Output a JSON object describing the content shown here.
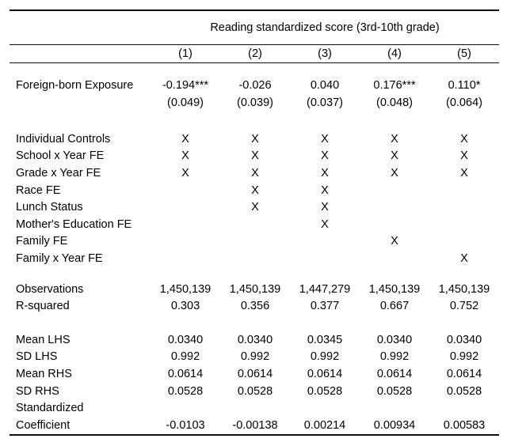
{
  "table": {
    "span_header": "Reading standardized score (3rd-10th grade)",
    "columns": [
      "(1)",
      "(2)",
      "(3)",
      "(4)",
      "(5)"
    ],
    "coefficient": {
      "label": "Foreign-born Exposure",
      "estimates": [
        "-0.194***",
        "-0.026",
        "0.040",
        "0.176***",
        "0.110*"
      ],
      "std_errors": [
        "(0.049)",
        "(0.039)",
        "(0.037)",
        "(0.048)",
        "(0.064)"
      ]
    },
    "controls": [
      {
        "label": "Individual Controls",
        "values": [
          "X",
          "X",
          "X",
          "X",
          "X"
        ]
      },
      {
        "label": "School x Year FE",
        "values": [
          "X",
          "X",
          "X",
          "X",
          "X"
        ]
      },
      {
        "label": "Grade x Year FE",
        "values": [
          "X",
          "X",
          "X",
          "X",
          "X"
        ]
      },
      {
        "label": "Race FE",
        "values": [
          "",
          "X",
          "X",
          "",
          ""
        ]
      },
      {
        "label": "Lunch Status",
        "values": [
          "",
          "X",
          "X",
          "",
          ""
        ]
      },
      {
        "label": "Mother's Education FE",
        "values": [
          "",
          "",
          "X",
          "",
          ""
        ]
      },
      {
        "label": "Family FE",
        "values": [
          "",
          "",
          "",
          "X",
          ""
        ]
      },
      {
        "label": "Family x Year FE",
        "values": [
          "",
          "",
          "",
          "",
          "X"
        ]
      }
    ],
    "fit": [
      {
        "label": "Observations",
        "values": [
          "1,450,139",
          "1,450,139",
          "1,447,279",
          "1,450,139",
          "1,450,139"
        ]
      },
      {
        "label": "R-squared",
        "values": [
          "0.303",
          "0.356",
          "0.377",
          "0.667",
          "0.752"
        ]
      }
    ],
    "summary": [
      {
        "label": "Mean LHS",
        "values": [
          "0.0340",
          "0.0340",
          "0.0345",
          "0.0340",
          "0.0340"
        ]
      },
      {
        "label": "SD LHS",
        "values": [
          "0.992",
          "0.992",
          "0.992",
          "0.992",
          "0.992"
        ]
      },
      {
        "label": "Mean RHS",
        "values": [
          "0.0614",
          "0.0614",
          "0.0614",
          "0.0614",
          "0.0614"
        ]
      },
      {
        "label": "SD RHS",
        "values": [
          "0.0528",
          "0.0528",
          "0.0528",
          "0.0528",
          "0.0528"
        ]
      },
      {
        "label": "Standardized",
        "values": [
          "",
          "",
          "",
          "",
          ""
        ]
      },
      {
        "label": "Coefficient",
        "values": [
          "-0.0103",
          "-0.00138",
          "0.00214",
          "0.00934",
          "0.00583"
        ]
      }
    ]
  }
}
